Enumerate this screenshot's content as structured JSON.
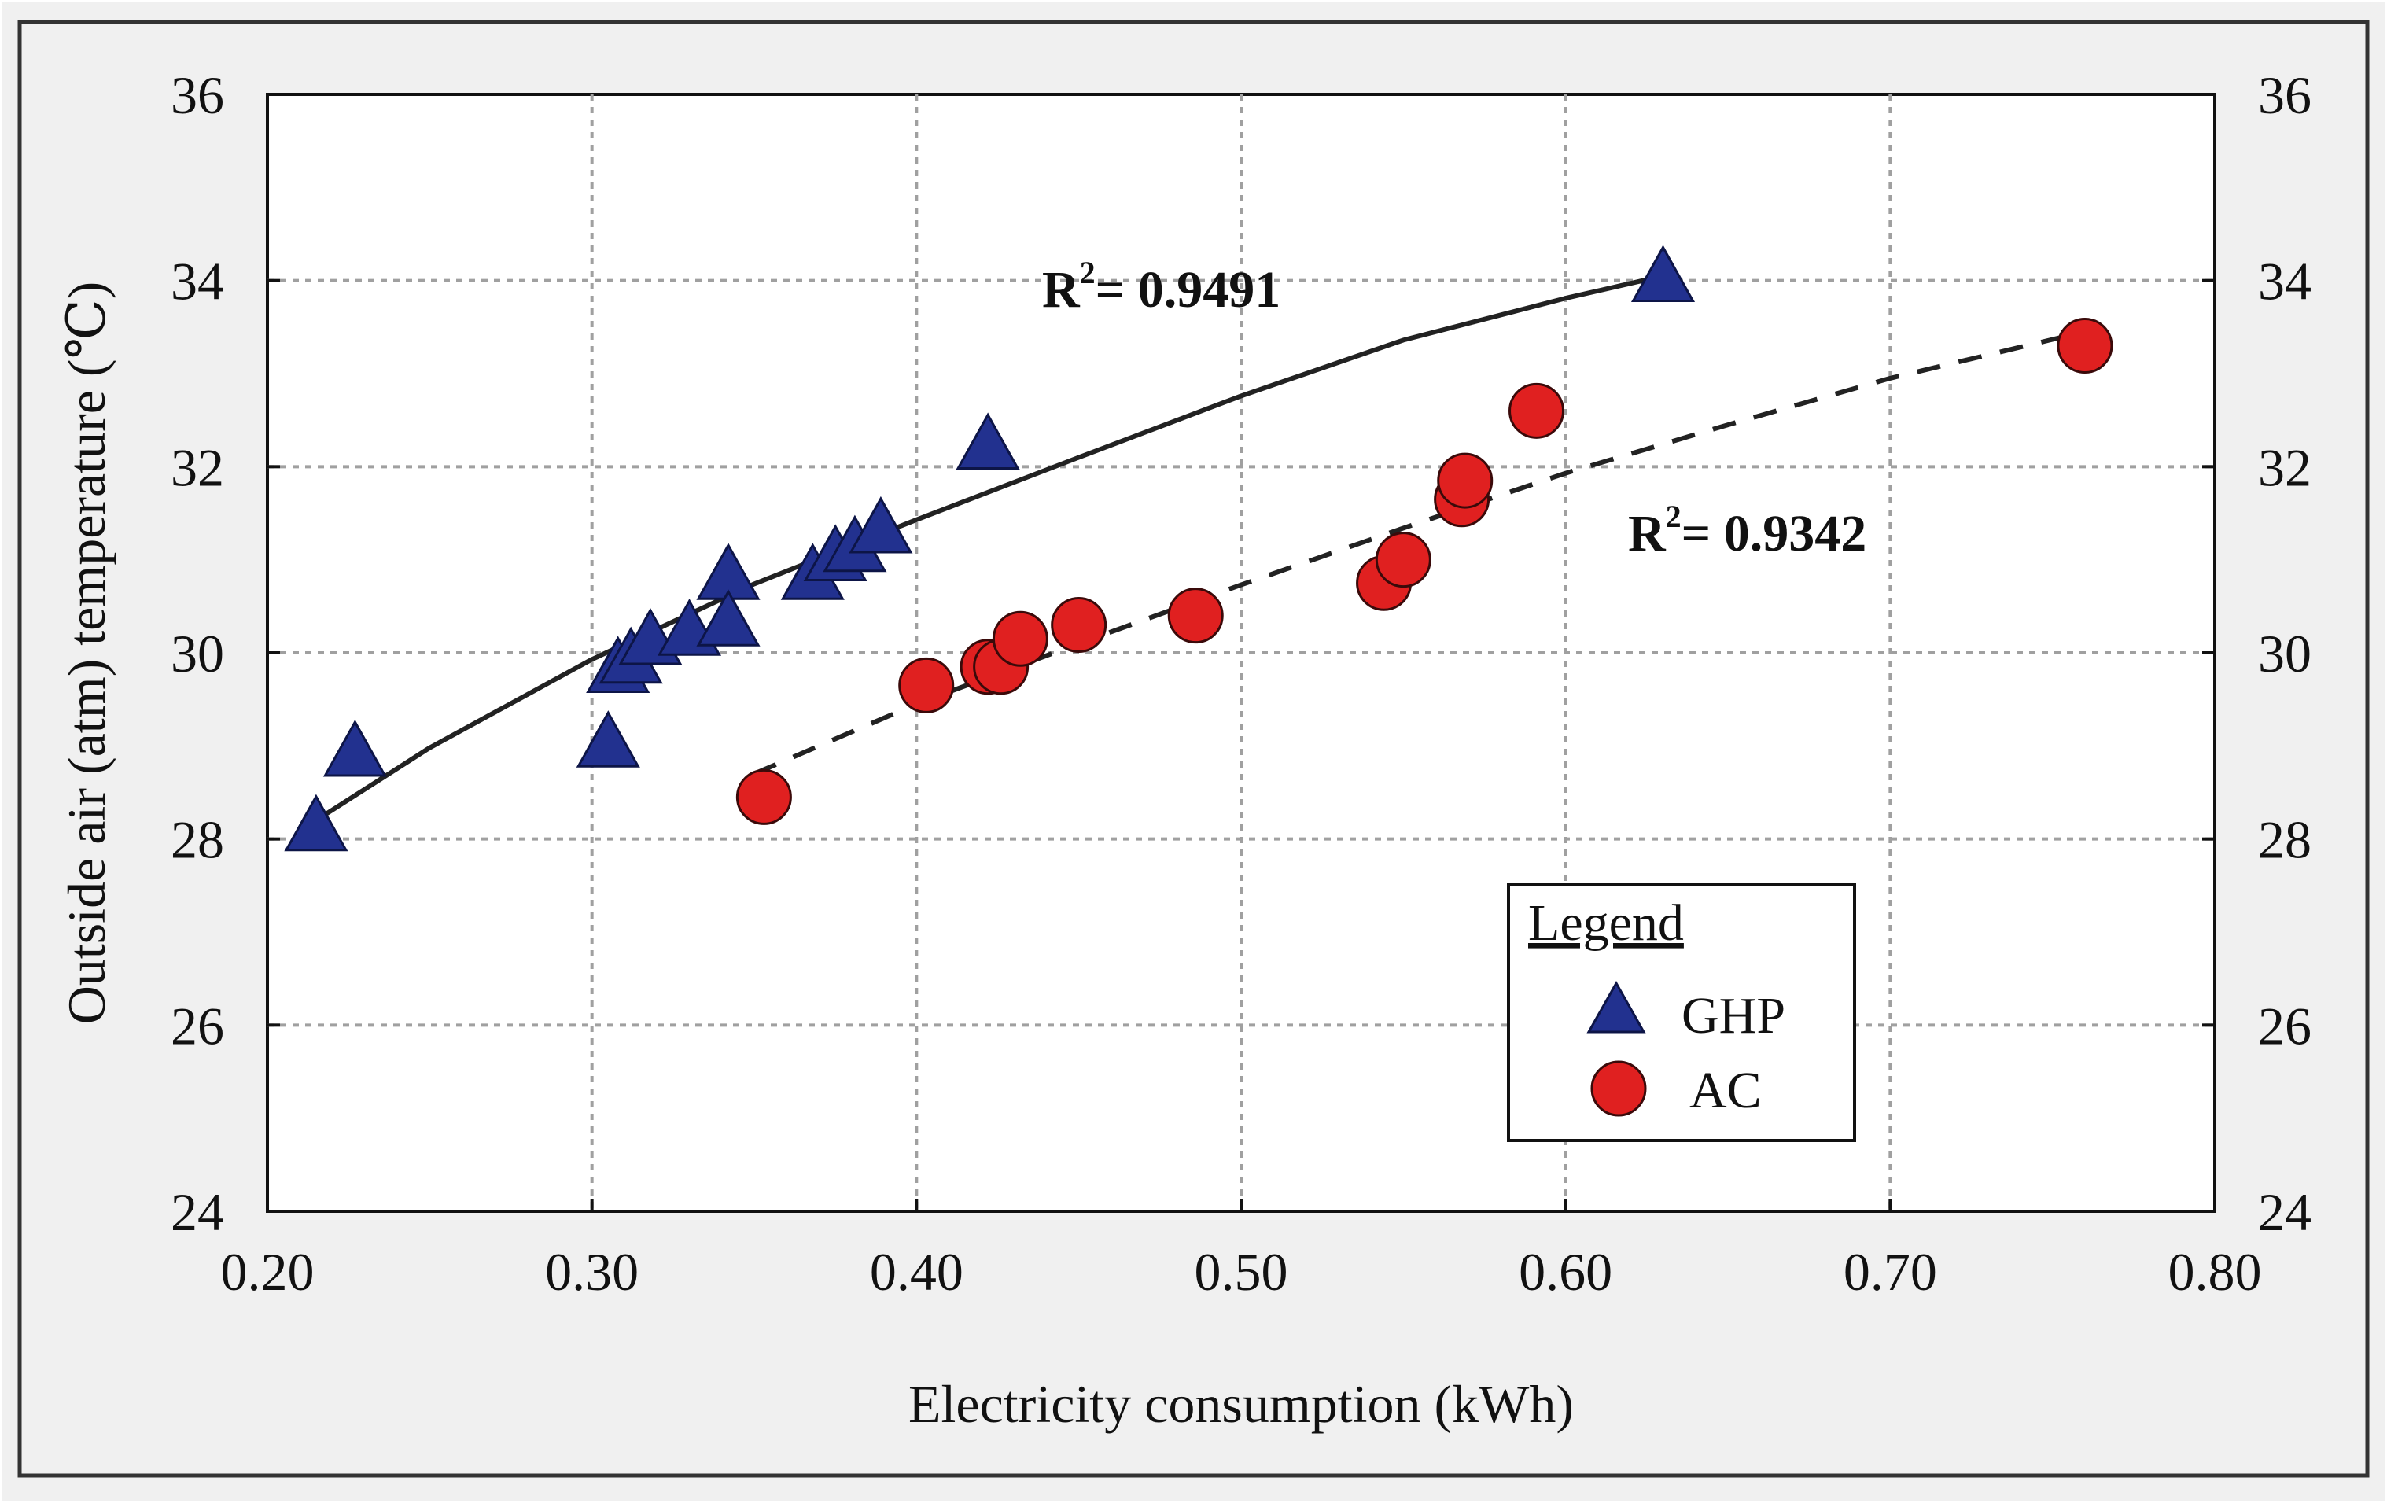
{
  "chart_data": {
    "type": "scatter",
    "title": "",
    "xlabel": "Electricity consumption (kWh)",
    "ylabel": "Outside air (atm) temperature (℃)",
    "xlim": [
      0.2,
      0.8
    ],
    "ylim": [
      24,
      36
    ],
    "xticks": [
      0.2,
      0.3,
      0.4,
      0.5,
      0.6,
      0.7,
      0.8
    ],
    "xtick_labels": [
      "0.20",
      "0.30",
      "0.40",
      "0.50",
      "0.60",
      "0.70",
      "0.80"
    ],
    "yticks": [
      24,
      26,
      28,
      30,
      32,
      34,
      36
    ],
    "ytick_labels": [
      "24",
      "26",
      "28",
      "30",
      "32",
      "34",
      "36"
    ],
    "grid": true,
    "legend": {
      "title": "Legend",
      "position": "bottom-right",
      "entries": [
        "GHP",
        "AC"
      ]
    },
    "series": [
      {
        "name": "GHP",
        "marker": "triangle",
        "color": "#22318f",
        "x": [
          0.215,
          0.227,
          0.305,
          0.308,
          0.312,
          0.318,
          0.33,
          0.342,
          0.342,
          0.368,
          0.375,
          0.381,
          0.389,
          0.422,
          0.63
        ],
        "y": [
          28.1,
          28.9,
          29.0,
          29.8,
          29.9,
          30.1,
          30.2,
          30.8,
          30.3,
          30.8,
          31.0,
          31.1,
          31.3,
          32.2,
          34.0
        ]
      },
      {
        "name": "AC",
        "marker": "circle",
        "color": "#e02020",
        "x": [
          0.353,
          0.403,
          0.422,
          0.426,
          0.432,
          0.45,
          0.486,
          0.544,
          0.55,
          0.568,
          0.569,
          0.591,
          0.76
        ],
        "y": [
          28.45,
          29.65,
          29.85,
          29.85,
          30.15,
          30.3,
          30.4,
          30.75,
          31.0,
          31.65,
          31.85,
          32.6,
          33.3
        ]
      }
    ],
    "trendlines": [
      {
        "series": "GHP",
        "style": "solid",
        "r2_label": "R",
        "r2_sup": "2",
        "r2_value": "= 0.9491",
        "x": [
          0.215,
          0.25,
          0.3,
          0.35,
          0.4,
          0.45,
          0.5,
          0.55,
          0.6,
          0.63
        ],
        "y": [
          28.2,
          28.98,
          29.93,
          30.74,
          31.43,
          32.1,
          32.76,
          33.36,
          33.81,
          34.05
        ]
      },
      {
        "series": "AC",
        "style": "dashed",
        "r2_label": "R",
        "r2_sup": "2",
        "r2_value": "= 0.9342",
        "x": [
          0.35,
          0.4,
          0.45,
          0.5,
          0.55,
          0.6,
          0.65,
          0.7,
          0.76
        ],
        "y": [
          28.7,
          29.45,
          30.1,
          30.73,
          31.34,
          31.93,
          32.45,
          32.95,
          33.45
        ]
      }
    ]
  }
}
